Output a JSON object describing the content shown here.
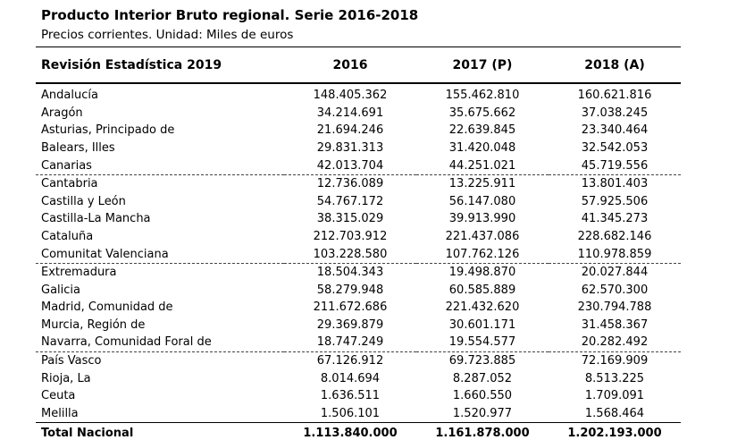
{
  "title": "Producto Interior Bruto regional. Serie 2016-2018",
  "subtitle": "Precios corrientes. Unidad: Miles de euros",
  "table": {
    "headers": [
      "Revisión Estadística 2019",
      "2016",
      "2017 (P)",
      "2018 (A)"
    ],
    "rows": [
      {
        "label": "Andalucía",
        "values": [
          "148.405.362",
          "155.462.810",
          "160.621.816"
        ]
      },
      {
        "label": "Aragón",
        "values": [
          "34.214.691",
          "35.675.662",
          "37.038.245"
        ]
      },
      {
        "label": "Asturias, Principado de",
        "values": [
          "21.694.246",
          "22.639.845",
          "23.340.464"
        ]
      },
      {
        "label": "Balears, Illes",
        "values": [
          "29.831.313",
          "31.420.048",
          "32.542.053"
        ]
      },
      {
        "label": "Canarias",
        "values": [
          "42.013.704",
          "44.251.021",
          "45.719.556"
        ],
        "separator_after": "dashed"
      },
      {
        "label": "Cantabria",
        "values": [
          "12.736.089",
          "13.225.911",
          "13.801.403"
        ]
      },
      {
        "label": "Castilla y León",
        "values": [
          "54.767.172",
          "56.147.080",
          "57.925.506"
        ]
      },
      {
        "label": "Castilla-La Mancha",
        "values": [
          "38.315.029",
          "39.913.990",
          "41.345.273"
        ]
      },
      {
        "label": "Cataluña",
        "values": [
          "212.703.912",
          "221.437.086",
          "228.682.146"
        ]
      },
      {
        "label": "Comunitat Valenciana",
        "values": [
          "103.228.580",
          "107.762.126",
          "110.978.859"
        ],
        "separator_after": "dashed"
      },
      {
        "label": "Extremadura",
        "values": [
          "18.504.343",
          "19.498.870",
          "20.027.844"
        ]
      },
      {
        "label": "Galicia",
        "values": [
          "58.279.948",
          "60.585.889",
          "62.570.300"
        ]
      },
      {
        "label": "Madrid, Comunidad de",
        "values": [
          "211.672.686",
          "221.432.620",
          "230.794.788"
        ]
      },
      {
        "label": "Murcia, Región de",
        "values": [
          "29.369.879",
          "30.601.171",
          "31.458.367"
        ]
      },
      {
        "label": "Navarra, Comunidad Foral de",
        "values": [
          "18.747.249",
          "19.554.577",
          "20.282.492"
        ],
        "separator_after": "dashed"
      },
      {
        "label": "País Vasco",
        "values": [
          "67.126.912",
          "69.723.885",
          "72.169.909"
        ]
      },
      {
        "label": "Rioja, La",
        "values": [
          "8.014.694",
          "8.287.052",
          "8.513.225"
        ]
      },
      {
        "label": "Ceuta",
        "values": [
          "1.636.511",
          "1.660.550",
          "1.709.091"
        ]
      },
      {
        "label": "Melilla",
        "values": [
          "1.506.101",
          "1.520.977",
          "1.568.464"
        ]
      }
    ],
    "total_row": {
      "label": "Total Nacional",
      "values": [
        "1.113.840.000",
        "1.161.878.000",
        "1.202.193.000"
      ]
    }
  }
}
